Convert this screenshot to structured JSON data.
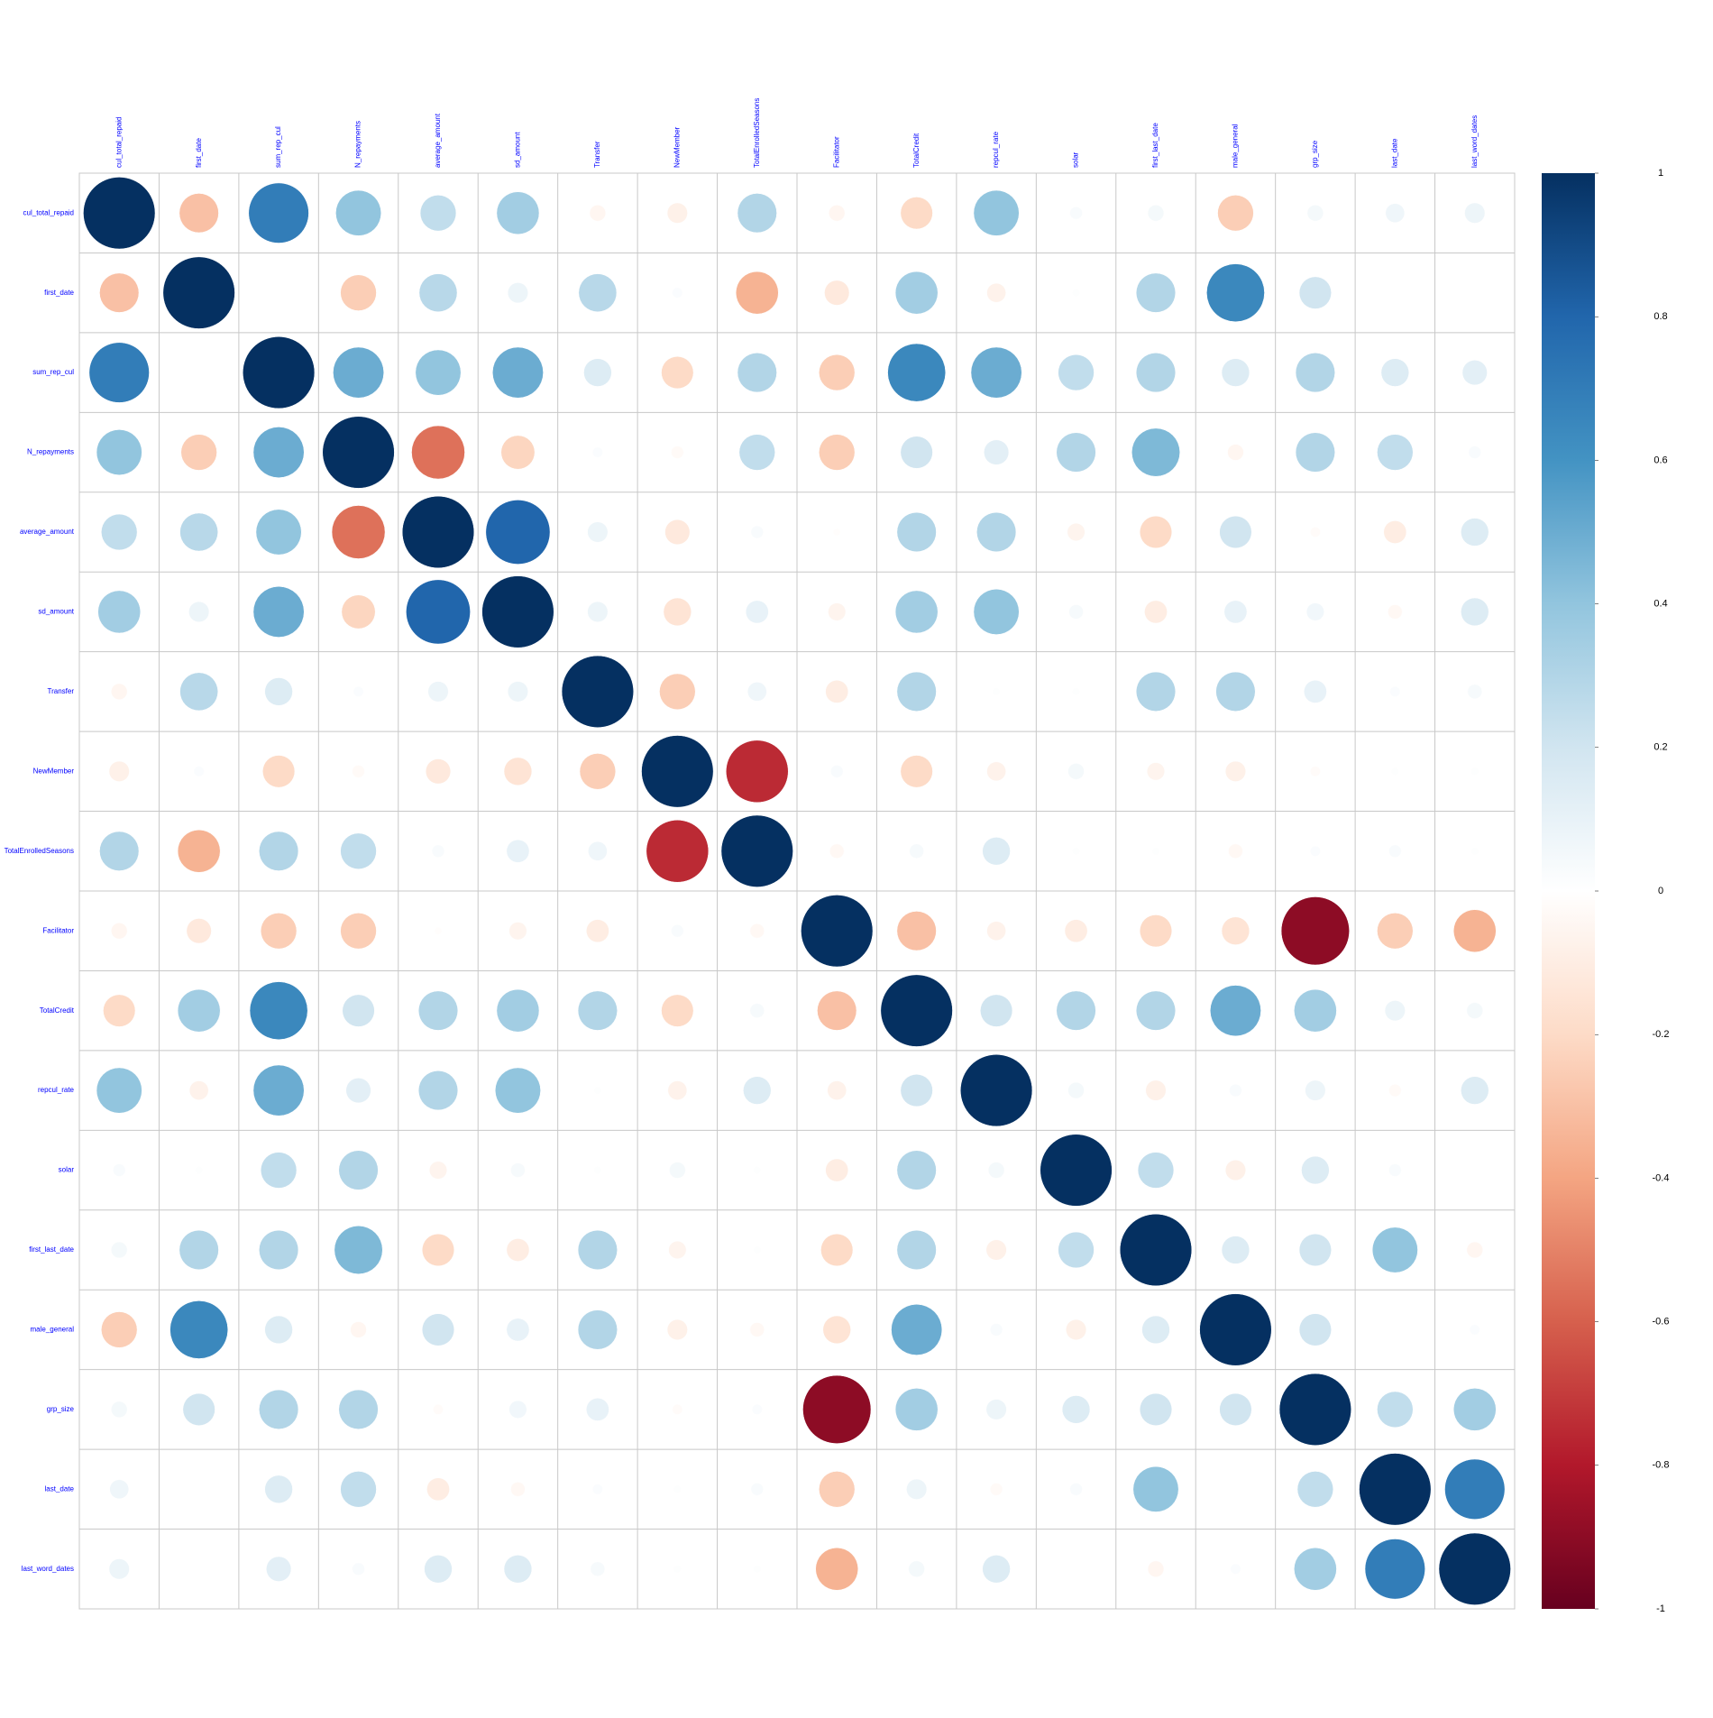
{
  "chart_data": {
    "type": "corrplot",
    "variables": [
      "cul_total_repaid",
      "first_date",
      "sum_rep_cul",
      "N_repayments",
      "average_amount",
      "sd_amount",
      "Transfer",
      "NewMember",
      "TotalEnrolledSeasons",
      "Facilitator",
      "TotalCredit",
      "repcul_rate",
      "solar",
      "first_last_date",
      "male_general",
      "grp_size",
      "last_date",
      "last_word_dates"
    ],
    "matrix": [
      [
        1,
        -0.3,
        0.7,
        0.4,
        0.25,
        0.35,
        -0.05,
        -0.08,
        0.3,
        -0.05,
        -0.2,
        0.4,
        0.03,
        0.05,
        -0.25,
        0.05,
        0.07,
        0.08
      ],
      [
        -0.3,
        1,
        0,
        -0.25,
        0.28,
        0.08,
        0.28,
        0.02,
        -0.35,
        -0.12,
        0.35,
        -0.07,
        0.01,
        0.3,
        0.65,
        0.2,
        0,
        0
      ],
      [
        0.7,
        0,
        1,
        0.5,
        0.4,
        0.5,
        0.15,
        -0.2,
        0.3,
        -0.25,
        0.65,
        0.5,
        0.25,
        0.3,
        0.15,
        0.3,
        0.15,
        0.12
      ],
      [
        0.4,
        -0.25,
        0.5,
        1,
        -0.55,
        -0.22,
        0.02,
        -0.03,
        0.25,
        -0.25,
        0.2,
        0.12,
        0.3,
        0.45,
        -0.05,
        0.3,
        0.25,
        0.03
      ],
      [
        0.25,
        0.28,
        0.4,
        -0.55,
        1,
        0.8,
        0.08,
        -0.12,
        0.03,
        -0.01,
        0.3,
        0.3,
        -0.06,
        -0.2,
        0.2,
        -0.02,
        -0.1,
        0.15
      ],
      [
        0.35,
        0.08,
        0.5,
        -0.22,
        0.8,
        1,
        0.08,
        -0.15,
        0.1,
        -0.06,
        0.35,
        0.4,
        0.04,
        -0.1,
        0.1,
        0.06,
        -0.04,
        0.15
      ],
      [
        -0.05,
        0.28,
        0.15,
        0.02,
        0.08,
        0.08,
        1,
        -0.25,
        0.07,
        -0.1,
        0.3,
        0.01,
        0.01,
        0.3,
        0.3,
        0.1,
        0.02,
        0.04
      ],
      [
        -0.08,
        0.02,
        -0.2,
        -0.03,
        -0.12,
        -0.15,
        -0.25,
        1,
        -0.75,
        0.03,
        -0.2,
        -0.07,
        0.05,
        -0.06,
        -0.08,
        -0.02,
        0.01,
        0.01
      ],
      [
        0.3,
        -0.35,
        0.3,
        0.25,
        0.03,
        0.1,
        0.07,
        -0.75,
        1,
        -0.04,
        0.04,
        0.15,
        0.01,
        0.01,
        -0.04,
        0.02,
        0.03,
        0.01
      ],
      [
        -0.05,
        -0.12,
        -0.25,
        -0.25,
        -0.01,
        -0.06,
        -0.1,
        0.03,
        -0.04,
        1,
        -0.3,
        -0.07,
        -0.1,
        -0.2,
        -0.15,
        -0.9,
        -0.25,
        -0.35
      ],
      [
        -0.2,
        0.35,
        0.65,
        0.2,
        0.3,
        0.35,
        0.3,
        -0.2,
        0.04,
        -0.3,
        1,
        0.2,
        0.3,
        0.3,
        0.5,
        0.35,
        0.08,
        0.05
      ],
      [
        0.4,
        -0.07,
        0.5,
        0.12,
        0.3,
        0.4,
        0.01,
        -0.07,
        0.15,
        -0.07,
        0.2,
        1,
        0.05,
        -0.08,
        0.03,
        0.08,
        -0.03,
        0.15
      ],
      [
        0.03,
        0.01,
        0.25,
        0.3,
        -0.06,
        0.04,
        0.01,
        0.05,
        0.01,
        -0.1,
        0.3,
        0.05,
        1,
        0.25,
        -0.08,
        0.15,
        0.03,
        0
      ],
      [
        0.05,
        0.3,
        0.3,
        0.45,
        -0.2,
        -0.1,
        0.3,
        -0.06,
        0.01,
        -0.2,
        0.3,
        -0.08,
        0.25,
        1,
        0.15,
        0.2,
        0.4,
        -0.05
      ],
      [
        -0.25,
        0.65,
        0.15,
        -0.05,
        0.2,
        0.1,
        0.3,
        -0.08,
        -0.04,
        -0.15,
        0.5,
        0.03,
        -0.08,
        0.15,
        1,
        0.2,
        0,
        0.02
      ],
      [
        0.05,
        0.2,
        0.3,
        0.3,
        -0.02,
        0.06,
        0.1,
        -0.02,
        0.02,
        -0.9,
        0.35,
        0.08,
        0.15,
        0.2,
        0.2,
        1,
        0.25,
        0.35
      ],
      [
        0.07,
        0,
        0.15,
        0.25,
        -0.1,
        -0.04,
        0.02,
        0.01,
        0.03,
        -0.25,
        0.08,
        -0.03,
        0.03,
        0.4,
        0,
        0.25,
        1,
        0.7
      ],
      [
        0.08,
        0,
        0.12,
        0.03,
        0.15,
        0.15,
        0.04,
        0.01,
        0.01,
        -0.35,
        0.05,
        0.15,
        0,
        -0.05,
        0.02,
        0.35,
        0.7,
        1
      ]
    ],
    "ylim": [
      -1,
      1
    ],
    "yticks": [
      -1,
      -0.8,
      -0.6,
      -0.4,
      -0.2,
      0,
      0.2,
      0.4,
      0.6,
      0.8,
      1
    ],
    "colors": [
      "#67001f",
      "#b2182b",
      "#d6604d",
      "#f4a582",
      "#fddbc7",
      "#ffffff",
      "#d1e5f0",
      "#92c5de",
      "#4393c3",
      "#2166ac",
      "#053061"
    ],
    "label_color": "#0000ff"
  }
}
